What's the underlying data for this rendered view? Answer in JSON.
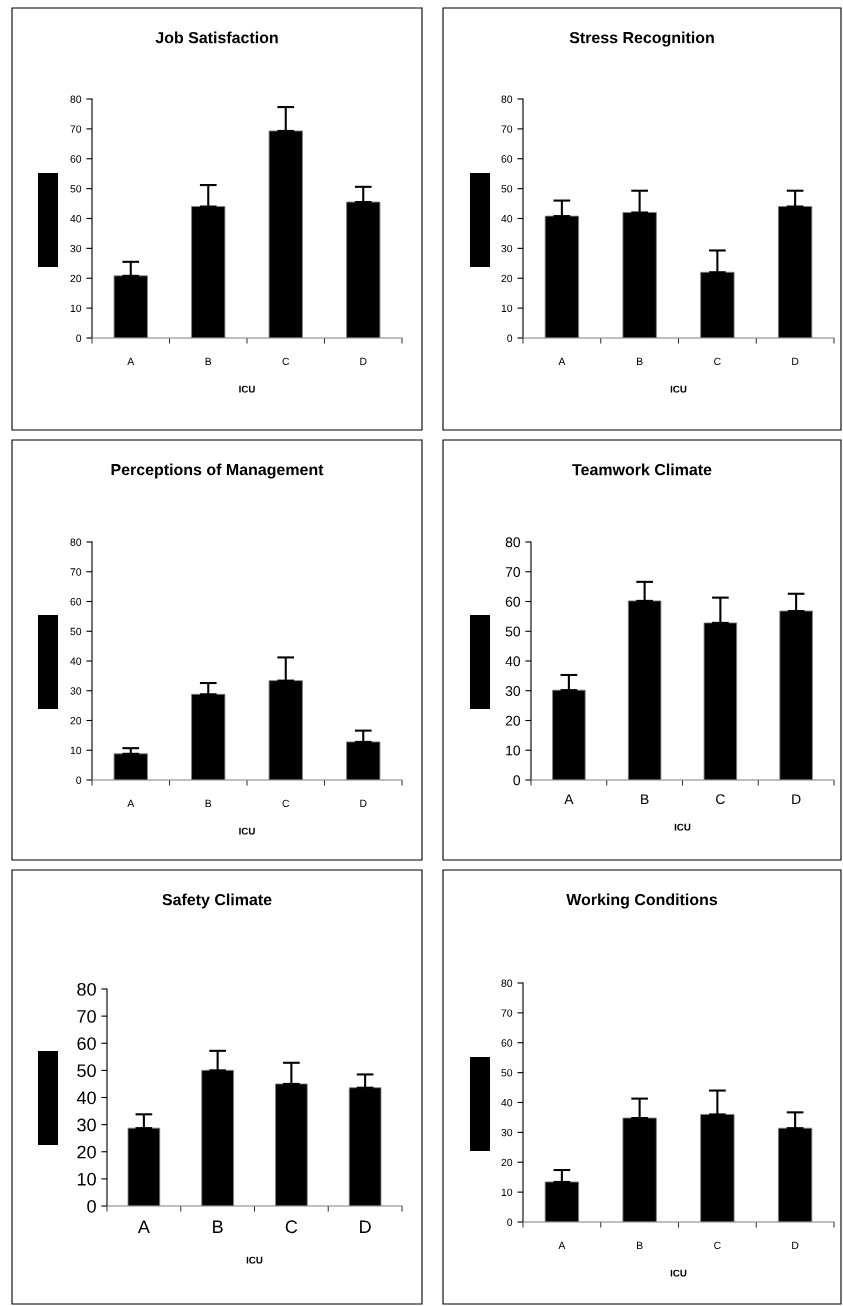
{
  "chart_data": [
    {
      "type": "bar",
      "title": "Job Satisfaction",
      "xlabel": "ICU",
      "categories": [
        "A",
        "B",
        "C",
        "D"
      ],
      "color": "#000000",
      "values": [
        20.8,
        44,
        69.3,
        45.5
      ],
      "errors": [
        [
          20.8,
          25.5
        ],
        [
          44,
          51.2
        ],
        [
          69.3,
          77.3
        ],
        [
          45.5,
          50.6
        ]
      ],
      "ylim": [
        0,
        80
      ],
      "yticks": [
        0,
        10,
        20,
        30,
        40,
        50,
        60,
        70,
        80
      ],
      "grid": false,
      "legend": false
    },
    {
      "type": "bar",
      "title": "Stress Recognition",
      "xlabel": "ICU",
      "categories": [
        "A",
        "B",
        "C",
        "D"
      ],
      "color": "#000000",
      "values": [
        40.8,
        42,
        22,
        44
      ],
      "errors": [
        [
          40.8,
          46
        ],
        [
          42,
          49.3
        ],
        [
          22,
          29.3
        ],
        [
          44,
          49.3
        ]
      ],
      "ylim": [
        0,
        80
      ],
      "yticks": [
        0,
        10,
        20,
        30,
        40,
        50,
        60,
        70,
        80
      ],
      "grid": false,
      "legend": false
    },
    {
      "type": "bar",
      "title": "Perceptions of Management",
      "xlabel": "ICU",
      "categories": [
        "A",
        "B",
        "C",
        "D"
      ],
      "color": "#000000",
      "values": [
        8.8,
        28.8,
        33.4,
        12.8
      ],
      "errors": [
        [
          8.8,
          10.7
        ],
        [
          28.8,
          32.6
        ],
        [
          33.4,
          41.2
        ],
        [
          12.8,
          16.6
        ]
      ],
      "ylim": [
        0,
        80
      ],
      "yticks": [
        0,
        10,
        20,
        30,
        40,
        50,
        60,
        70,
        80
      ],
      "grid": false,
      "legend": false
    },
    {
      "type": "bar",
      "title": "Teamwork Climate",
      "xlabel": "ICU",
      "categories": [
        "A",
        "B",
        "C",
        "D"
      ],
      "color": "#000000",
      "values": [
        30.2,
        60.2,
        52.8,
        56.8
      ],
      "errors": [
        [
          30.2,
          35.3
        ],
        [
          60.2,
          66.6
        ],
        [
          52.8,
          61.3
        ],
        [
          56.8,
          62.6
        ]
      ],
      "ylim": [
        0,
        80
      ],
      "yticks": [
        0,
        10,
        20,
        30,
        40,
        50,
        60,
        70,
        80
      ],
      "grid": false,
      "legend": false
    },
    {
      "type": "bar",
      "title": "Safety Climate",
      "xlabel": "ICU",
      "categories": [
        "A",
        "B",
        "C",
        "D"
      ],
      "color": "#000000",
      "values": [
        28.7,
        50,
        45,
        43.6
      ],
      "errors": [
        [
          28.7,
          33.8
        ],
        [
          50,
          57.2
        ],
        [
          45,
          52.8
        ],
        [
          43.6,
          48.5
        ]
      ],
      "ylim": [
        0,
        80
      ],
      "yticks": [
        0,
        10,
        20,
        30,
        40,
        50,
        60,
        70,
        80
      ],
      "grid": false,
      "legend": false
    },
    {
      "type": "bar",
      "title": "Working Conditions",
      "xlabel": "ICU",
      "categories": [
        "A",
        "B",
        "C",
        "D"
      ],
      "color": "#000000",
      "values": [
        13.4,
        34.8,
        36,
        31.4
      ],
      "errors": [
        [
          13.4,
          17.4
        ],
        [
          34.8,
          41.3
        ],
        [
          36,
          44
        ],
        [
          31.4,
          36.7
        ]
      ],
      "ylim": [
        0,
        80
      ],
      "yticks": [
        0,
        10,
        20,
        30,
        40,
        50,
        60,
        70,
        80
      ],
      "grid": false,
      "legend": false
    }
  ]
}
